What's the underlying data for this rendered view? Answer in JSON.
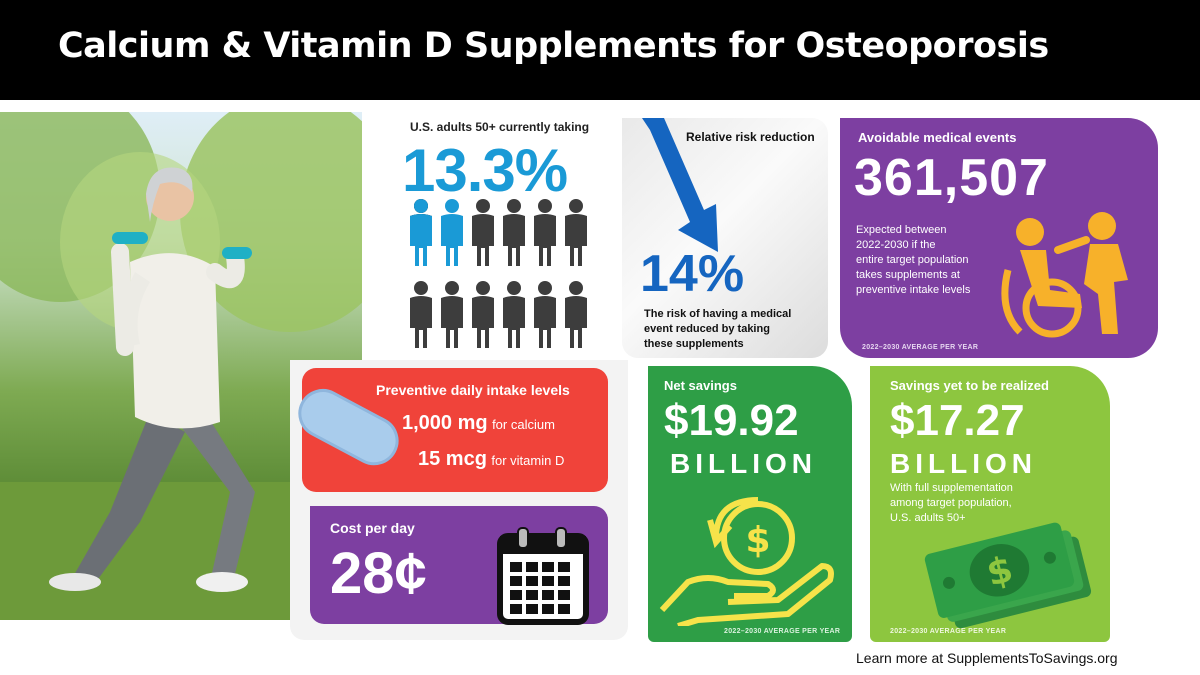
{
  "header": {
    "title": "Calcium & Vitamin D Supplements for Osteoporosis"
  },
  "adults": {
    "label": "U.S. adults 50+ currently taking",
    "value": "13.3%"
  },
  "risk": {
    "label": "Relative risk reduction",
    "value": "14%",
    "description_1": "The risk of having a medical",
    "description_2": "event reduced by taking",
    "description_3": "these supplements"
  },
  "events": {
    "label": "Avoidable medical events",
    "value": "361,507",
    "desc_1": "Expected between",
    "desc_2": "2022-2030 if the",
    "desc_3": "entire target population",
    "desc_4": "takes supplements at",
    "desc_5": "preventive intake levels",
    "footnote": "2022–2030 AVERAGE PER YEAR"
  },
  "intake": {
    "label": "Preventive daily intake levels",
    "calcium_amount": "1,000 mg",
    "calcium_suffix": "for calcium",
    "vitd_amount": "15 mcg",
    "vitd_suffix": "for vitamin D"
  },
  "cost": {
    "label": "Cost per day",
    "value": "28¢"
  },
  "net": {
    "label": "Net savings",
    "value": "$19.92",
    "unit": "BILLION",
    "footnote": "2022–2030 AVERAGE PER YEAR"
  },
  "yet": {
    "label": "Savings yet to be realized",
    "value": "$17.27",
    "unit": "BILLION",
    "desc_1": "With full supplementation",
    "desc_2": "among target population,",
    "desc_3": "U.S. adults 50+",
    "footnote": "2022–2030 AVERAGE PER YEAR"
  },
  "footer": {
    "link": "Learn more at SupplementsToSavings.org"
  },
  "colors": {
    "blue": "#1a9ad6",
    "purple": "#7d3fa1",
    "red": "#f0433a",
    "green": "#2e9e46",
    "lime": "#8dc63f",
    "arrow": "#1565c0"
  }
}
